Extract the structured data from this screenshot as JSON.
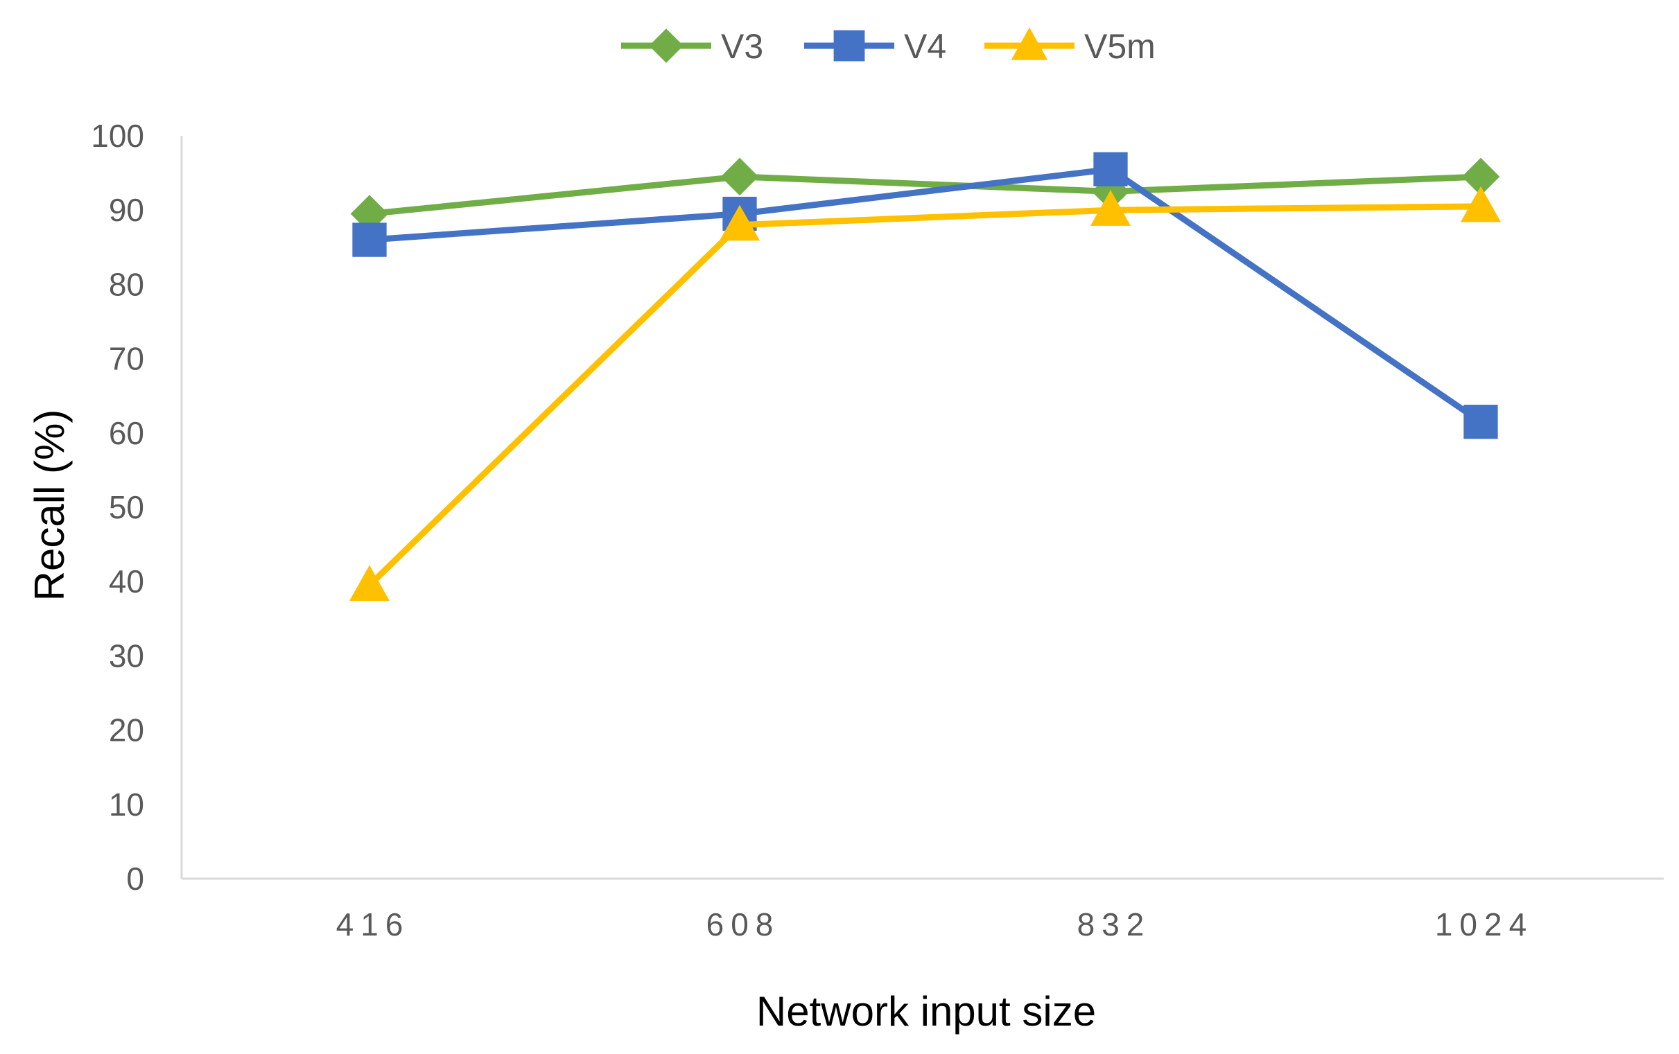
{
  "chart_data": {
    "type": "line",
    "title": "",
    "xlabel": "Network input size",
    "ylabel": "Recall (%)",
    "categories": [
      "416",
      "608",
      "832",
      "1024"
    ],
    "ylim": [
      0,
      100
    ],
    "yticks": [
      0,
      10,
      20,
      30,
      40,
      50,
      60,
      70,
      80,
      90,
      100
    ],
    "grid": false,
    "legend_position": "top",
    "series": [
      {
        "name": "V3",
        "values": [
          89.5,
          94.5,
          92.5,
          94.5
        ],
        "color": "#70AD47",
        "marker": "diamond"
      },
      {
        "name": "V4",
        "values": [
          86,
          89.5,
          95.5,
          61.5
        ],
        "color": "#4472C4",
        "marker": "square"
      },
      {
        "name": "V5m",
        "values": [
          39.5,
          88,
          90,
          90.5
        ],
        "color": "#FFC000",
        "marker": "triangle"
      }
    ]
  }
}
